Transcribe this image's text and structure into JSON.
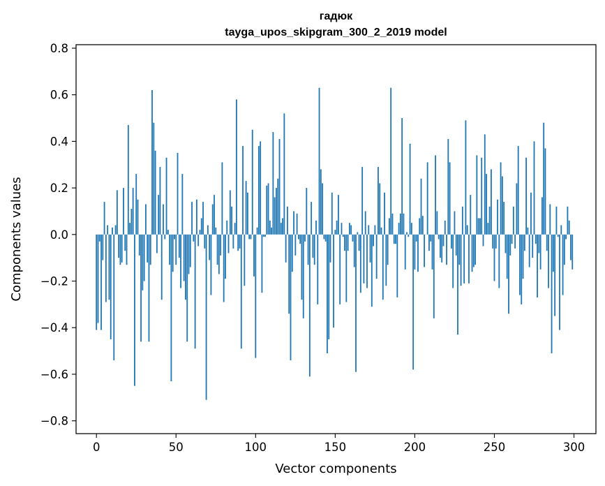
{
  "chart_data": {
    "type": "bar",
    "title": "гадюк",
    "subtitle": "tayga_upos_skipgram_300_2_2019 model",
    "xlabel": "Vector components",
    "ylabel": "Components values",
    "xlim": [
      -12.8,
      313.8
    ],
    "ylim": [
      -0.855,
      0.815
    ],
    "xticks": [
      0,
      50,
      100,
      150,
      200,
      250,
      300
    ],
    "yticks": [
      -0.8,
      -0.6,
      -0.4,
      -0.2,
      0.0,
      0.2,
      0.4,
      0.6,
      0.8
    ],
    "xtick_labels": [
      "0",
      "50",
      "100",
      "150",
      "200",
      "250",
      "300"
    ],
    "ytick_labels": [
      "−0.8",
      "−0.6",
      "−0.4",
      "−0.2",
      "0.0",
      "0.2",
      "0.4",
      "0.6",
      "0.8"
    ],
    "bar_color": "#1f77b4",
    "values": [
      -0.41,
      -0.38,
      -0.03,
      -0.41,
      -0.11,
      0.14,
      -0.29,
      0.04,
      -0.28,
      -0.45,
      0.03,
      -0.54,
      0.04,
      0.19,
      -0.1,
      -0.13,
      -0.12,
      0.2,
      -0.07,
      -0.13,
      0.47,
      0.05,
      0.11,
      0.2,
      -0.65,
      0.26,
      0.15,
      -0.09,
      -0.46,
      -0.24,
      -0.2,
      0.13,
      -0.12,
      -0.46,
      -0.13,
      0.62,
      0.48,
      0.36,
      -0.08,
      0.17,
      0.29,
      -0.28,
      0.13,
      -0.02,
      0.33,
      0.02,
      -0.13,
      -0.63,
      -0.16,
      -0.02,
      -0.13,
      0.35,
      -0.1,
      -0.23,
      0.26,
      -0.2,
      -0.28,
      -0.46,
      -0.17,
      -0.14,
      0.14,
      -0.03,
      -0.49,
      0.15,
      -0.05,
      0.02,
      0.07,
      0.14,
      -0.06,
      -0.71,
      0.04,
      -0.11,
      -0.26,
      0.13,
      0.17,
      0.03,
      -0.13,
      -0.17,
      -0.09,
      0.31,
      -0.29,
      -0.19,
      0.06,
      -0.08,
      0.19,
      0.12,
      -0.06,
      0.05,
      0.58,
      -0.07,
      -0.06,
      -0.49,
      0.38,
      -0.22,
      0.23,
      0.18,
      -0.02,
      -0.02,
      0.45,
      -0.18,
      -0.53,
      0.03,
      0.38,
      0.4,
      -0.25,
      -0.01,
      -0.01,
      0.21,
      0.22,
      0.06,
      0.03,
      0.44,
      0.16,
      0.2,
      0.24,
      0.41,
      0.05,
      0.07,
      0.52,
      -0.12,
      0.12,
      -0.34,
      -0.54,
      -0.16,
      0.1,
      -0.09,
      0.09,
      -0.02,
      -0.04,
      -0.28,
      -0.36,
      -0.03,
      0.2,
      -0.13,
      -0.61,
      0.14,
      -0.1,
      -0.13,
      0.06,
      -0.3,
      0.63,
      0.28,
      0.22,
      -0.02,
      -0.03,
      -0.51,
      -0.45,
      -0.12,
      0.18,
      -0.4,
      0.02,
      0.06,
      0.17,
      -0.3,
      0.05,
      -0.01,
      -0.07,
      -0.29,
      -0.07,
      0.05,
      0.04,
      -0.03,
      -0.14,
      -0.59,
      0.01,
      -0.07,
      -0.25,
      0.29,
      -0.21,
      0.1,
      -0.23,
      0.04,
      -0.12,
      -0.31,
      -0.05,
      0.04,
      -0.19,
      0.29,
      0.22,
      0.03,
      -0.28,
      0.18,
      -0.22,
      -0.13,
      0.07,
      0.63,
      0.09,
      -0.04,
      -0.04,
      -0.27,
      0.05,
      0.09,
      0.5,
      0.09,
      -0.15,
      0.01,
      -0.01,
      0.39,
      0.05,
      -0.58,
      -0.15,
      -0.03,
      -0.16,
      0.07,
      0.24,
      0.08,
      -0.14,
      0.0,
      0.31,
      -0.07,
      -0.03,
      -0.15,
      -0.36,
      0.34,
      0.1,
      -0.02,
      -0.1,
      -0.12,
      -0.05,
      0.06,
      -0.13,
      0.41,
      0.31,
      -0.06,
      -0.23,
      0.1,
      -0.09,
      -0.43,
      -0.13,
      -0.22,
      0.12,
      -0.21,
      0.49,
      0.04,
      -0.21,
      0.17,
      -0.16,
      -0.14,
      -0.13,
      0.34,
      0.07,
      0.07,
      0.33,
      -0.05,
      0.43,
      0.26,
      0.05,
      0.12,
      0.28,
      -0.06,
      -0.2,
      -0.06,
      0.15,
      -0.23,
      0.31,
      0.25,
      0.14,
      -0.08,
      -0.19,
      -0.34,
      -0.09,
      -0.04,
      0.12,
      -0.06,
      0.22,
      0.38,
      -0.26,
      -0.3,
      -0.19,
      -0.07,
      0.33,
      0.03,
      -0.14,
      0.18,
      -0.1,
      0.4,
      -0.04,
      -0.27,
      -0.08,
      -0.15,
      0.16,
      0.48,
      0.37,
      -0.07,
      -0.23,
      0.13,
      -0.51,
      -0.16,
      -0.35,
      0.12,
      -0.01,
      -0.41,
      0.04,
      -0.26,
      -0.13,
      -0.02,
      0.12,
      0.06,
      -0.11,
      -0.15
    ]
  }
}
